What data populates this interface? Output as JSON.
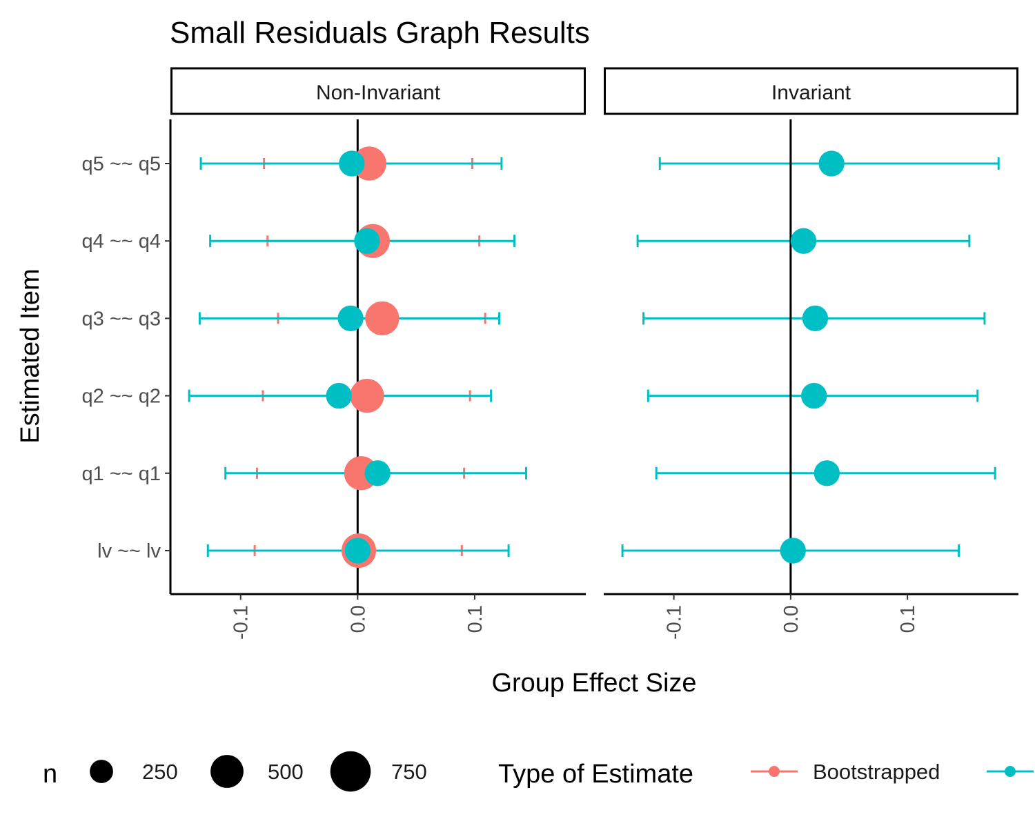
{
  "chart_data": {
    "type": "scatter",
    "title": "Small Residuals Graph Results",
    "xlabel": "Group Effect Size",
    "ylabel": "Estimated Item",
    "xlim": [
      -0.16,
      0.195
    ],
    "x_ticks": [
      "-0.1",
      "0.0",
      "0.1"
    ],
    "x_tick_values": [
      -0.1,
      0.0,
      0.1
    ],
    "items": [
      "lv ~~ lv",
      "q1 ~~ q1",
      "q2 ~~ q2",
      "q3 ~~ q3",
      "q4 ~~ q4",
      "q5 ~~ q5"
    ],
    "reference_line_x": 0,
    "legend_position": "bottom",
    "colors": {
      "Bootstrapped": "#F8766D",
      "Other": "#00BFC4"
    },
    "panels": [
      {
        "name": "Non-Invariant",
        "series": [
          {
            "name": "Bootstrapped",
            "points": [
              {
                "item": "lv ~~ lv",
                "estimate": 0.001,
                "lower": -0.088,
                "upper": 0.089,
                "n": 900
              },
              {
                "item": "q1 ~~ q1",
                "estimate": 0.003,
                "lower": -0.086,
                "upper": 0.091,
                "n": 870
              },
              {
                "item": "q2 ~~ q2",
                "estimate": 0.008,
                "lower": -0.081,
                "upper": 0.096,
                "n": 870
              },
              {
                "item": "q3 ~~ q3",
                "estimate": 0.021,
                "lower": -0.068,
                "upper": 0.109,
                "n": 870
              },
              {
                "item": "q4 ~~ q4",
                "estimate": 0.013,
                "lower": -0.077,
                "upper": 0.104,
                "n": 870
              },
              {
                "item": "q5 ~~ q5",
                "estimate": 0.01,
                "lower": -0.08,
                "upper": 0.098,
                "n": 870
              }
            ]
          },
          {
            "name": "",
            "points": [
              {
                "item": "lv ~~ lv",
                "estimate": 0.0,
                "lower": -0.128,
                "upper": 0.129,
                "n": 500
              },
              {
                "item": "q1 ~~ q1",
                "estimate": 0.017,
                "lower": -0.113,
                "upper": 0.144,
                "n": 500
              },
              {
                "item": "q2 ~~ q2",
                "estimate": -0.016,
                "lower": -0.144,
                "upper": 0.114,
                "n": 500
              },
              {
                "item": "q3 ~~ q3",
                "estimate": -0.006,
                "lower": -0.135,
                "upper": 0.121,
                "n": 500
              },
              {
                "item": "q4 ~~ q4",
                "estimate": 0.008,
                "lower": -0.126,
                "upper": 0.134,
                "n": 500
              },
              {
                "item": "q5 ~~ q5",
                "estimate": -0.005,
                "lower": -0.134,
                "upper": 0.123,
                "n": 500
              }
            ]
          }
        ]
      },
      {
        "name": "Invariant",
        "series": [
          {
            "name": "",
            "points": [
              {
                "item": "lv ~~ lv",
                "estimate": 0.002,
                "lower": -0.144,
                "upper": 0.144,
                "n": 500
              },
              {
                "item": "q1 ~~ q1",
                "estimate": 0.031,
                "lower": -0.115,
                "upper": 0.175,
                "n": 500
              },
              {
                "item": "q2 ~~ q2",
                "estimate": 0.02,
                "lower": -0.122,
                "upper": 0.16,
                "n": 500
              },
              {
                "item": "q3 ~~ q3",
                "estimate": 0.021,
                "lower": -0.126,
                "upper": 0.166,
                "n": 500
              },
              {
                "item": "q4 ~~ q4",
                "estimate": 0.011,
                "lower": -0.131,
                "upper": 0.153,
                "n": 500
              },
              {
                "item": "q5 ~~ q5",
                "estimate": 0.035,
                "lower": -0.112,
                "upper": 0.178,
                "n": 500
              }
            ]
          }
        ]
      }
    ],
    "legend": {
      "size_title": "n",
      "size_entries": [
        {
          "label": "250",
          "n": 250
        },
        {
          "label": "500",
          "n": 500
        },
        {
          "label": "750",
          "n": 750
        }
      ],
      "color_title": "Type of Estimate",
      "color_entries": [
        {
          "label": "Bootstrapped",
          "color": "#F8766D"
        },
        {
          "label": "",
          "color": "#00BFC4"
        }
      ]
    }
  }
}
